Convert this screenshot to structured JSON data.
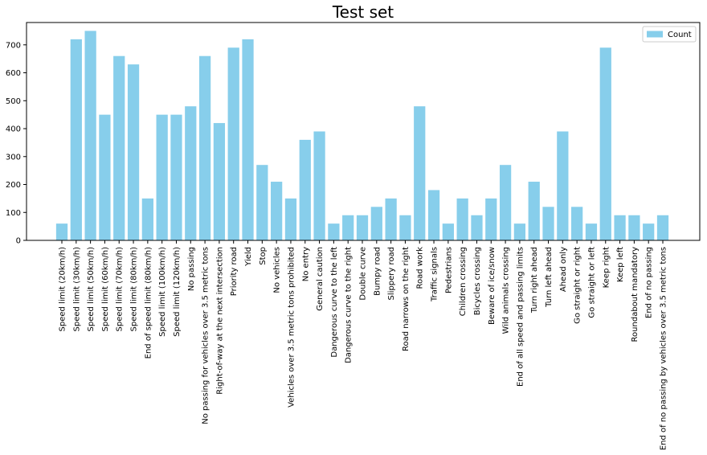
{
  "chart_data": {
    "type": "bar",
    "title": "Test set",
    "xlabel": "",
    "ylabel": "",
    "ylim": [
      0,
      780
    ],
    "yticks": [
      0,
      100,
      200,
      300,
      400,
      500,
      600,
      700
    ],
    "grid": false,
    "legend": {
      "placement": "top-right",
      "entries": [
        "Count"
      ]
    },
    "bar_color": "#87ceeb",
    "categories": [
      "Speed limit (20km/h)",
      "Speed limit (30km/h)",
      "Speed limit (50km/h)",
      "Speed limit (60km/h)",
      "Speed limit (70km/h)",
      "Speed limit (80km/h)",
      "End of speed limit (80km/h)",
      "Speed limit (100km/h)",
      "Speed limit (120km/h)",
      "No passing",
      "No passing for vehicles over 3.5 metric tons",
      "Right-of-way at the next intersection",
      "Priority road",
      "Yield",
      "Stop",
      "No vehicles",
      "Vehicles over 3.5 metric tons prohibited",
      "No entry",
      "General caution",
      "Dangerous curve to the left",
      "Dangerous curve to the right",
      "Double curve",
      "Bumpy road",
      "Slippery road",
      "Road narrows on the right",
      "Road work",
      "Traffic signals",
      "Pedestrians",
      "Children crossing",
      "Bicycles crossing",
      "Beware of ice/snow",
      "Wild animals crossing",
      "End of all speed and passing limits",
      "Turn right ahead",
      "Turn left ahead",
      "Ahead only",
      "Go straight or right",
      "Go straight or left",
      "Keep right",
      "Keep left",
      "Roundabout mandatory",
      "End of no passing",
      "End of no passing by vehicles over 3.5 metric tons"
    ],
    "series": [
      {
        "name": "Count",
        "values": [
          60,
          720,
          750,
          450,
          660,
          630,
          150,
          450,
          450,
          480,
          660,
          420,
          690,
          720,
          270,
          210,
          150,
          360,
          390,
          60,
          90,
          90,
          120,
          150,
          90,
          480,
          180,
          60,
          150,
          90,
          150,
          270,
          60,
          210,
          120,
          390,
          120,
          60,
          690,
          90,
          90,
          60,
          90
        ]
      }
    ]
  }
}
